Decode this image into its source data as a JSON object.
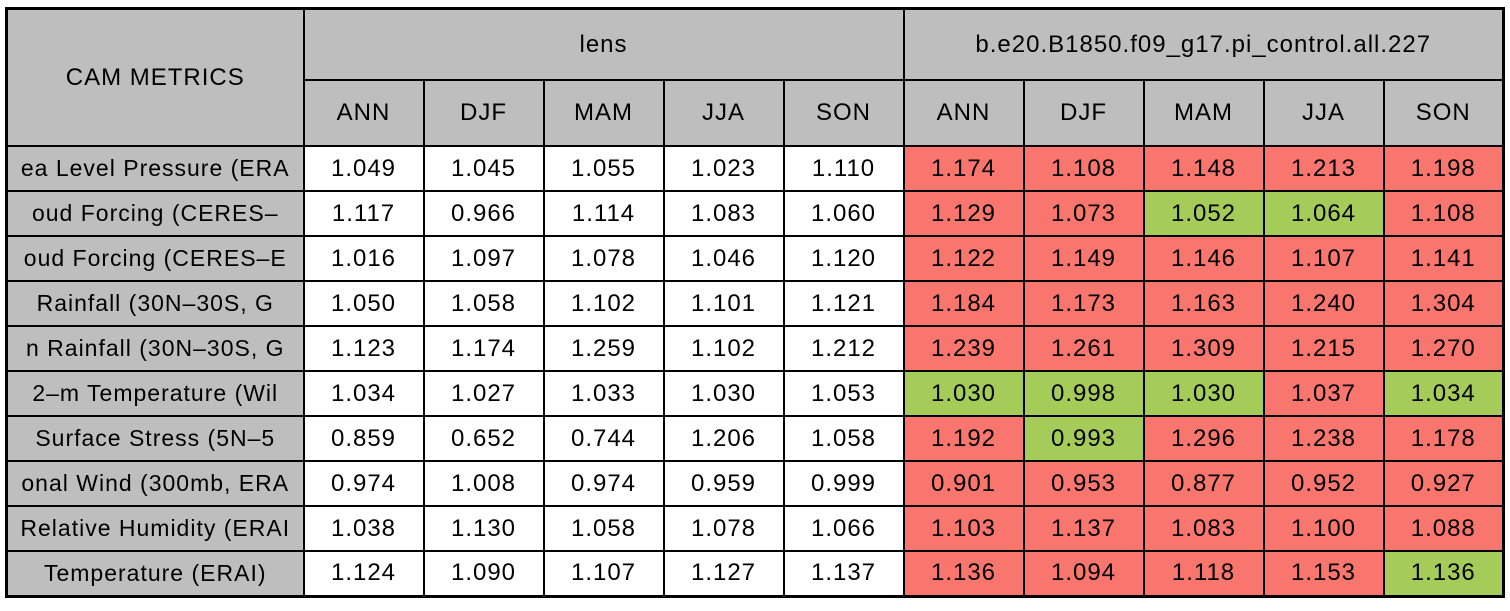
{
  "title": "CAM METRICS",
  "groups": [
    {
      "label": "lens"
    },
    {
      "label": "b.e20.B1850.f09_g17.pi_control.all.227"
    }
  ],
  "season_columns": [
    "ANN",
    "DJF",
    "MAM",
    "JJA",
    "SON"
  ],
  "colors": {
    "header_blue": "#6190E6",
    "header_gray": "#BEBEBE",
    "cell_red": "#F8766D",
    "cell_green": "#A5CB59",
    "cell_white": "#FFFFFF",
    "border_black": "#000000"
  },
  "rows": [
    {
      "label": "ea Level Pressure (ERA",
      "lens_values": [
        "1.049",
        "1.045",
        "1.055",
        "1.023",
        "1.110"
      ],
      "control_values": [
        "1.174",
        "1.108",
        "1.148",
        "1.213",
        "1.198"
      ],
      "control_status": [
        "red",
        "red",
        "red",
        "red",
        "red"
      ]
    },
    {
      "label": "oud Forcing (CERES–",
      "lens_values": [
        "1.117",
        "0.966",
        "1.114",
        "1.083",
        "1.060"
      ],
      "control_values": [
        "1.129",
        "1.073",
        "1.052",
        "1.064",
        "1.108"
      ],
      "control_status": [
        "red",
        "red",
        "green",
        "green",
        "red"
      ]
    },
    {
      "label": "oud Forcing (CERES–E",
      "lens_values": [
        "1.016",
        "1.097",
        "1.078",
        "1.046",
        "1.120"
      ],
      "control_values": [
        "1.122",
        "1.149",
        "1.146",
        "1.107",
        "1.141"
      ],
      "control_status": [
        "red",
        "red",
        "red",
        "red",
        "red"
      ]
    },
    {
      "label": "Rainfall (30N–30S, G",
      "lens_values": [
        "1.050",
        "1.058",
        "1.102",
        "1.101",
        "1.121"
      ],
      "control_values": [
        "1.184",
        "1.173",
        "1.163",
        "1.240",
        "1.304"
      ],
      "control_status": [
        "red",
        "red",
        "red",
        "red",
        "red"
      ]
    },
    {
      "label": "n Rainfall (30N–30S, G",
      "lens_values": [
        "1.123",
        "1.174",
        "1.259",
        "1.102",
        "1.212"
      ],
      "control_values": [
        "1.239",
        "1.261",
        "1.309",
        "1.215",
        "1.270"
      ],
      "control_status": [
        "red",
        "red",
        "red",
        "red",
        "red"
      ]
    },
    {
      "label": "2–m Temperature (Wil",
      "lens_values": [
        "1.034",
        "1.027",
        "1.033",
        "1.030",
        "1.053"
      ],
      "control_values": [
        "1.030",
        "0.998",
        "1.030",
        "1.037",
        "1.034"
      ],
      "control_status": [
        "green",
        "green",
        "green",
        "red",
        "green"
      ]
    },
    {
      "label": "Surface Stress (5N–5",
      "lens_values": [
        "0.859",
        "0.652",
        "0.744",
        "1.206",
        "1.058"
      ],
      "control_values": [
        "1.192",
        "0.993",
        "1.296",
        "1.238",
        "1.178"
      ],
      "control_status": [
        "red",
        "green",
        "red",
        "red",
        "red"
      ]
    },
    {
      "label": "onal Wind (300mb, ERA",
      "lens_values": [
        "0.974",
        "1.008",
        "0.974",
        "0.959",
        "0.999"
      ],
      "control_values": [
        "0.901",
        "0.953",
        "0.877",
        "0.952",
        "0.927"
      ],
      "control_status": [
        "red",
        "red",
        "red",
        "red",
        "red"
      ]
    },
    {
      "label": "Relative Humidity (ERAI",
      "lens_values": [
        "1.038",
        "1.130",
        "1.058",
        "1.078",
        "1.066"
      ],
      "control_values": [
        "1.103",
        "1.137",
        "1.083",
        "1.100",
        "1.088"
      ],
      "control_status": [
        "red",
        "red",
        "red",
        "red",
        "red"
      ]
    },
    {
      "label": "Temperature (ERAI)",
      "lens_values": [
        "1.124",
        "1.090",
        "1.107",
        "1.127",
        "1.137"
      ],
      "control_values": [
        "1.136",
        "1.094",
        "1.118",
        "1.153",
        "1.136"
      ],
      "control_status": [
        "red",
        "red",
        "red",
        "red",
        "green"
      ]
    }
  ]
}
